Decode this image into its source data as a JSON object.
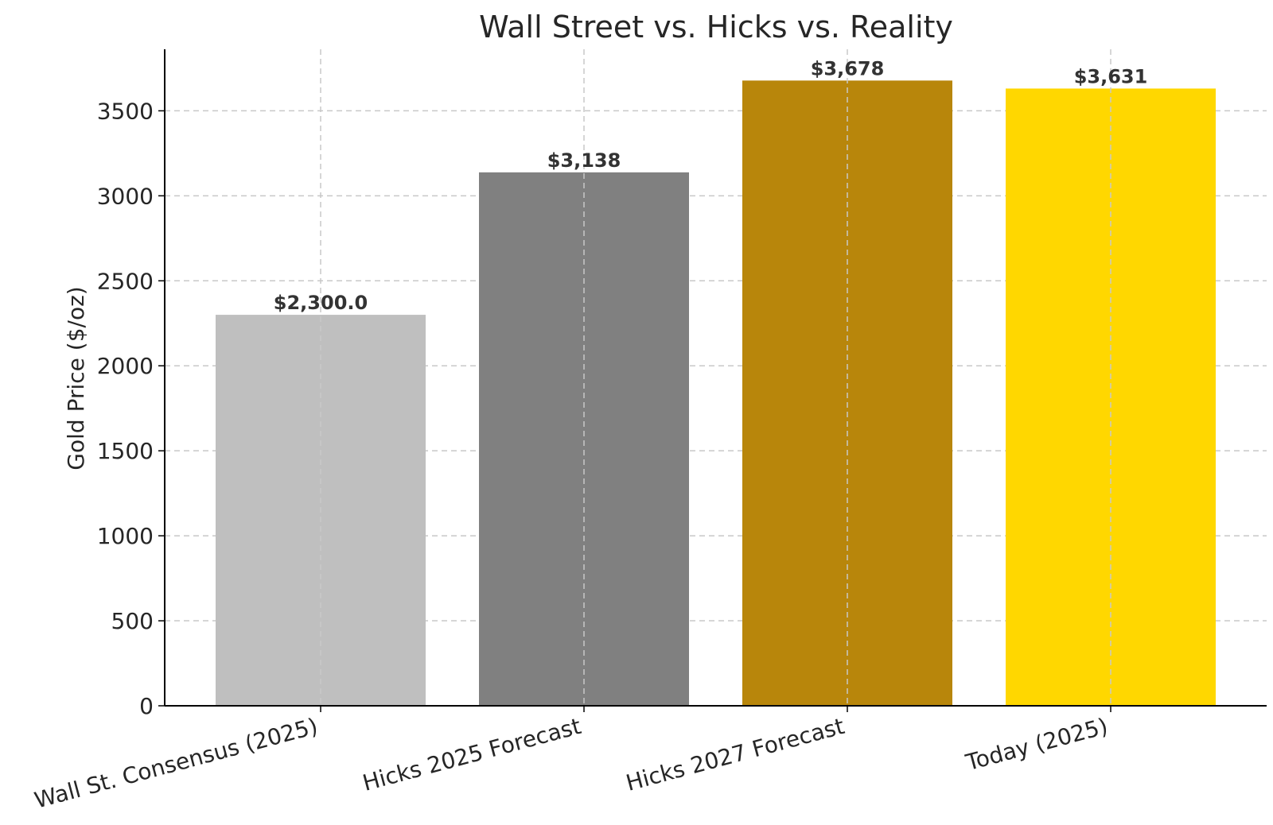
{
  "chart_data": {
    "type": "bar",
    "title": "Wall Street vs. Hicks vs. Reality",
    "xlabel": "",
    "ylabel": "Gold Price ($/oz)",
    "categories": [
      "Wall St. Consensus (2025)",
      "Hicks 2025 Forecast",
      "Hicks 2027 Forecast",
      "Today (2025)"
    ],
    "values": [
      2300.0,
      3138,
      3678,
      3631
    ],
    "data_labels": [
      "$2,300.0",
      "$3,138",
      "$3,678",
      "$3,631"
    ],
    "colors": [
      "#bfbfbf",
      "#808080",
      "#b8860b",
      "#ffd700"
    ],
    "ylim": [
      0,
      3862
    ],
    "yticks": [
      0,
      500,
      1000,
      1500,
      2000,
      2500,
      3000,
      3500
    ],
    "grid": true,
    "legend": "none"
  }
}
